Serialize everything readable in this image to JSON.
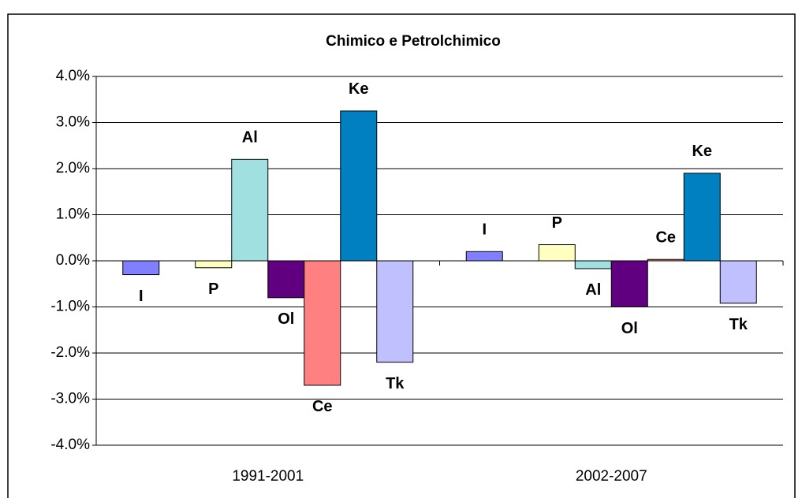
{
  "chart_data": {
    "type": "bar",
    "title": "Chimico e Petrolchimico",
    "categories": [
      "1991-2001",
      "2002-2007"
    ],
    "series": [
      {
        "name": "I",
        "color": "#8080ff",
        "values": [
          -0.3,
          0.2
        ]
      },
      {
        "name": "P",
        "color": "#ffffc0",
        "values": [
          -0.15,
          0.35
        ]
      },
      {
        "name": "Al",
        "color": "#a0e0e0",
        "values": [
          2.2,
          -0.17
        ]
      },
      {
        "name": "Ol",
        "color": "#600080",
        "values": [
          -0.8,
          -1.0
        ]
      },
      {
        "name": "Ce",
        "color": "#ff8080",
        "values": [
          -2.7,
          0.03
        ]
      },
      {
        "name": "Ke",
        "color": "#0080c0",
        "values": [
          3.25,
          1.9
        ]
      },
      {
        "name": "Tk",
        "color": "#c0c0ff",
        "values": [
          -2.2,
          -0.92
        ]
      }
    ],
    "ylim": [
      -4,
      4
    ],
    "yticks": [
      {
        "value": -4,
        "label": "-4.0%"
      },
      {
        "value": -3,
        "label": "-3.0%"
      },
      {
        "value": -2,
        "label": "-2.0%"
      },
      {
        "value": -1,
        "label": "-1.0%"
      },
      {
        "value": 0,
        "label": "0.0%"
      },
      {
        "value": 1,
        "label": "1.0%"
      },
      {
        "value": 2,
        "label": "2.0%"
      },
      {
        "value": 3,
        "label": "3.0%"
      },
      {
        "value": 4,
        "label": "4.0%"
      }
    ],
    "grid": true
  }
}
